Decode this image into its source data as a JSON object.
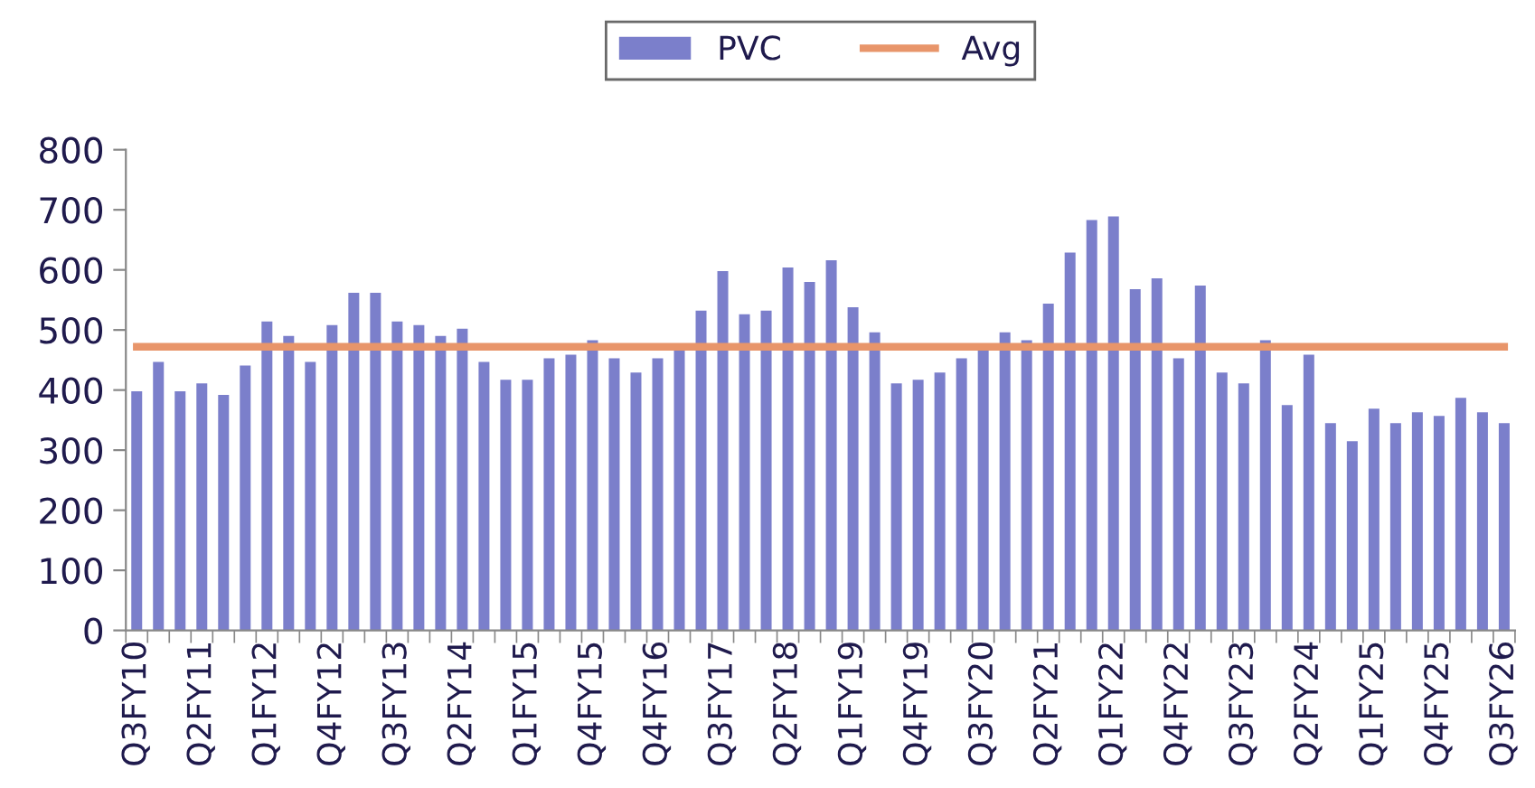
{
  "chart_data": {
    "type": "bar",
    "categories": [
      "Q3FY10",
      null,
      null,
      "Q2FY11",
      null,
      null,
      "Q1FY12",
      null,
      null,
      "Q4FY12",
      null,
      null,
      "Q3FY13",
      null,
      null,
      "Q2FY14",
      null,
      null,
      "Q1FY15",
      null,
      null,
      "Q4FY15",
      null,
      null,
      "Q4FY16",
      null,
      null,
      "Q3FY17",
      null,
      null,
      "Q2FY18",
      null,
      null,
      "Q1FY19",
      null,
      null,
      "Q4FY19",
      null,
      null,
      "Q3FY20",
      null,
      null,
      "Q2FY21",
      null,
      null,
      "Q1FY22",
      null,
      null,
      "Q4FY22",
      null,
      null,
      "Q3FY23",
      null,
      null,
      "Q2FY24",
      null,
      null,
      "Q1FY25",
      null,
      null,
      "Q4FY25",
      null,
      null,
      "Q3FY26"
    ],
    "series": [
      {
        "name": "PVC",
        "color": "#7b7fcb",
        "values": [
          398,
          447,
          398,
          411,
          392,
          441,
          514,
          490,
          447,
          508,
          562,
          562,
          514,
          508,
          490,
          502,
          447,
          417,
          417,
          453,
          459,
          483,
          453,
          429,
          453,
          471,
          532,
          598,
          526,
          532,
          604,
          580,
          616,
          538,
          496,
          411,
          417,
          429,
          453,
          471,
          496,
          483,
          544,
          629,
          683,
          689,
          568,
          586,
          453,
          574,
          429,
          411,
          483,
          375,
          459,
          345,
          315,
          369,
          345,
          363,
          357,
          387,
          363,
          345
        ]
      },
      {
        "name": "Avg",
        "type": "line",
        "color": "#e8956a",
        "values": [
          472,
          472,
          472,
          472,
          472,
          472,
          472,
          472,
          472,
          472,
          472,
          472,
          472,
          472,
          472,
          472,
          472,
          472,
          472,
          472,
          472,
          472,
          472,
          472,
          472,
          472,
          472,
          472,
          472,
          472,
          472,
          472,
          472,
          472,
          472,
          472,
          472,
          472,
          472,
          472,
          472,
          472,
          472,
          472,
          472,
          472,
          472,
          472,
          472,
          472,
          472,
          472,
          472,
          472,
          472,
          472,
          472,
          472,
          472,
          472,
          472,
          472,
          472,
          472
        ]
      }
    ],
    "ylim": [
      0,
      800
    ],
    "yticks": [
      0,
      100,
      200,
      300,
      400,
      500,
      600,
      700,
      800
    ],
    "grid": false,
    "legend": "top"
  }
}
